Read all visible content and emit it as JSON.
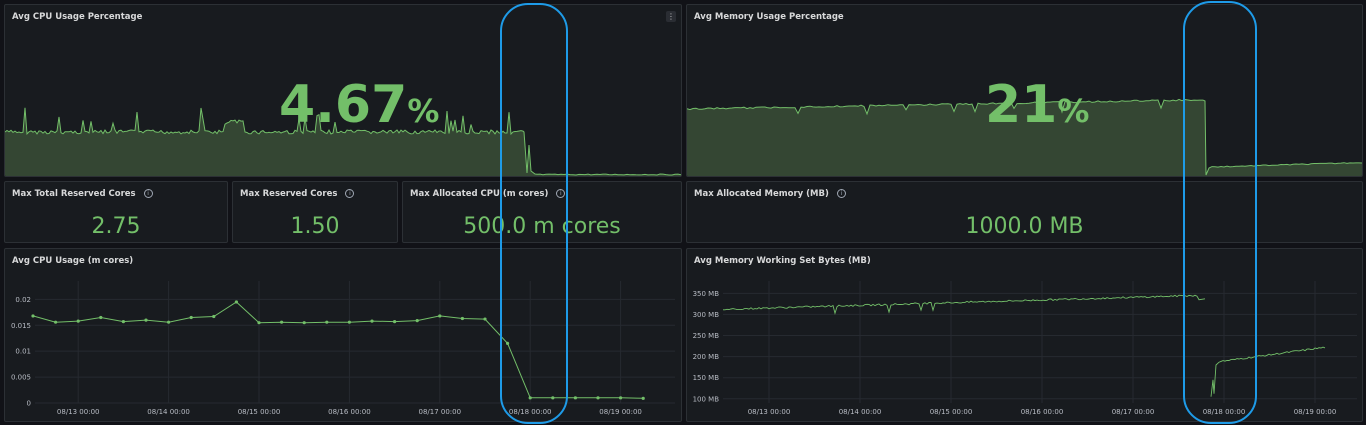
{
  "colors": {
    "accent": "#73bf69",
    "fill": "#3a4d37",
    "highlight": "#1e9be8"
  },
  "cpu_pct": {
    "title": "Avg CPU Usage Percentage",
    "value": "4.67",
    "unit": "%",
    "menu_icon": "⋮"
  },
  "mem_pct": {
    "title": "Avg Memory Usage Percentage",
    "value": "21",
    "unit": "%"
  },
  "stats": {
    "total_reserved": {
      "title": "Max Total Reserved Cores",
      "value": "2.75"
    },
    "reserved": {
      "title": "Max Reserved Cores",
      "value": "1.50"
    },
    "alloc_cpu": {
      "title": "Max Allocated CPU (m cores)",
      "value": "500.0 m cores"
    },
    "alloc_mem": {
      "title": "Max Allocated Memory (MB)",
      "value": "1000.0 MB"
    }
  },
  "info_icon": "i",
  "cpu_chart": {
    "title": "Avg CPU Usage (m cores)",
    "chart_data": {
      "type": "line",
      "x": [
        "08/12 12:00",
        "08/12 18:00",
        "08/13 00:00",
        "08/13 06:00",
        "08/13 12:00",
        "08/13 18:00",
        "08/14 00:00",
        "08/14 06:00",
        "08/14 12:00",
        "08/14 18:00",
        "08/15 00:00",
        "08/15 06:00",
        "08/15 12:00",
        "08/15 18:00",
        "08/16 00:00",
        "08/16 06:00",
        "08/16 12:00",
        "08/16 18:00",
        "08/17 00:00",
        "08/17 06:00",
        "08/17 12:00",
        "08/17 18:00",
        "08/18 00:00",
        "08/18 06:00",
        "08/18 12:00",
        "08/18 18:00",
        "08/19 00:00",
        "08/19 06:00"
      ],
      "values": [
        0.0168,
        0.0156,
        0.0158,
        0.0165,
        0.0157,
        0.016,
        0.0156,
        0.0165,
        0.0167,
        0.0195,
        0.0155,
        0.0156,
        0.0155,
        0.0156,
        0.0156,
        0.0158,
        0.0157,
        0.0159,
        0.0168,
        0.0163,
        0.0162,
        0.0115,
        0.001,
        0.001,
        0.001,
        0.001,
        0.001,
        0.0009
      ],
      "yticks": [
        "0",
        "0.005",
        "0.01",
        "0.015",
        "0.02"
      ],
      "ylim": [
        0,
        0.022
      ],
      "xticks": [
        "08/13 00:00",
        "08/14 00:00",
        "08/15 00:00",
        "08/16 00:00",
        "08/17 00:00",
        "08/18 00:00",
        "08/19 00:00"
      ]
    }
  },
  "mem_chart": {
    "title": "Avg Memory Working Set Bytes (MB)",
    "chart_data": {
      "type": "line",
      "ylim": [
        90,
        365
      ],
      "yticks": [
        "100 MB",
        "150 MB",
        "200 MB",
        "250 MB",
        "300 MB",
        "350 MB"
      ],
      "xticks": [
        "08/13 00:00",
        "08/14 00:00",
        "08/15 00:00",
        "08/16 00:00",
        "08/17 00:00",
        "08/18 00:00",
        "08/19 00:00"
      ],
      "before_restart": {
        "start": 312,
        "end": 345
      },
      "after_restart": {
        "start": 188,
        "end": 222
      }
    }
  }
}
